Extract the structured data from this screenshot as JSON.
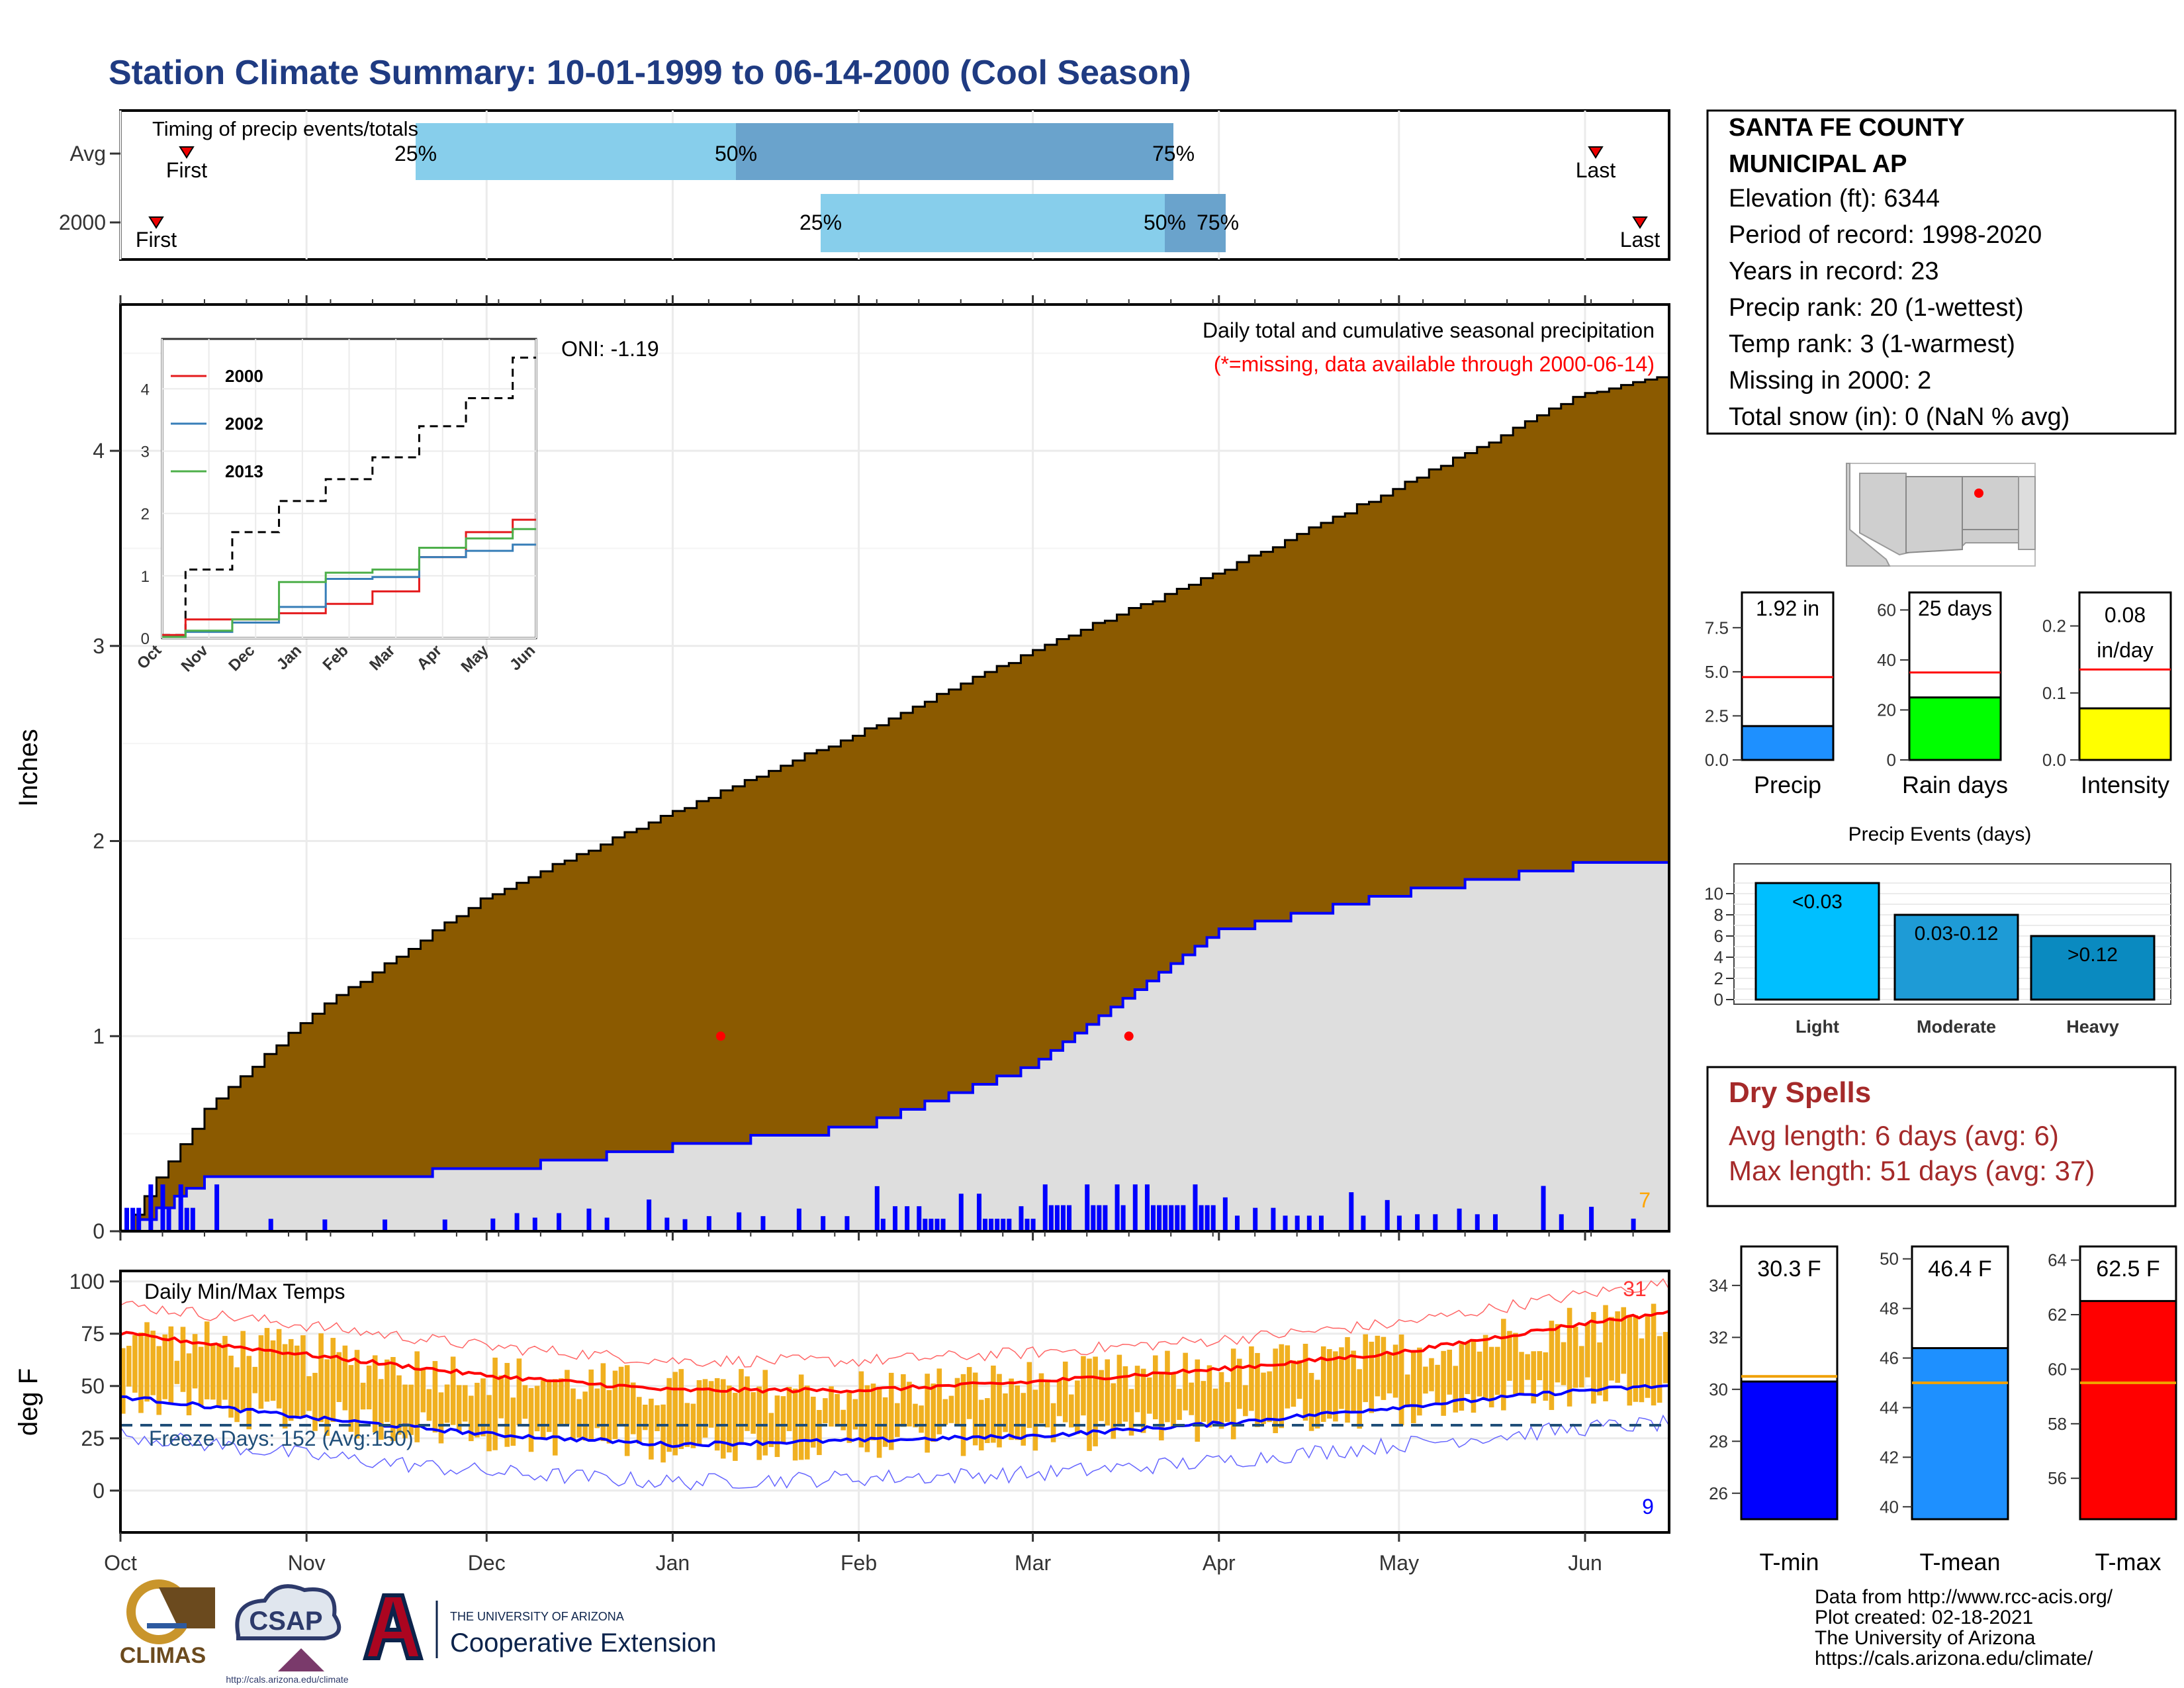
{
  "title": "Station Climate Summary: 10-01-1999 to 06-14-2000 (Cool Season)",
  "colors": {
    "title": "#1f3b82",
    "cum_avg_fill": "#8b5a00",
    "cum_year_fill": "#dedede",
    "year_line": "#0000ff",
    "timing_light": "#87ceeb",
    "timing_dark": "#6aa3cc",
    "temp_bar": "#f0b020",
    "tmax_line": "#ff0000",
    "tmin_line": "#0000ff",
    "dry_spells": "#a52a2a"
  },
  "station": {
    "name_line1": "SANTA FE COUNTY",
    "name_line2": "MUNICIPAL AP",
    "lines": [
      "Elevation (ft): 6344",
      "Period of record: 1998-2020",
      "Years in record: 23",
      "Precip rank: 20 (1-wettest)",
      "Temp rank: 3 (1-warmest)",
      "Missing in 2000: 2",
      "Total snow (in): 0 (NaN % avg)"
    ]
  },
  "timing": {
    "title": "Timing of precip events/totals",
    "rows": [
      {
        "label": "Avg",
        "first": "First",
        "last": "Last",
        "p25": "25%",
        "p50": "50%",
        "p75": "75%"
      },
      {
        "label": "2000",
        "first": "First",
        "last": "Last",
        "p25": "25%",
        "p50": "50%",
        "p75": "75%"
      }
    ]
  },
  "main": {
    "ylabel": "Inches",
    "oni": "ONI: -1.19",
    "note1": "Daily total and cumulative seasonal precipitation",
    "note2": "(*=missing, data available through 2000-06-14)",
    "count_label": "7"
  },
  "inset": {
    "legend": [
      "2000",
      "2002",
      "2013"
    ],
    "legend_colors": [
      "#e41a1c",
      "#377eb8",
      "#4daf4a"
    ]
  },
  "temps": {
    "title": "Daily Min/Max Temps",
    "ylabel": "deg F",
    "freeze": "Freeze Days: 152 (Avg:150)",
    "count_high": "31",
    "count_low": "9"
  },
  "months": [
    "Oct",
    "Nov",
    "Dec",
    "Jan",
    "Feb",
    "Mar",
    "Apr",
    "May",
    "Jun"
  ],
  "summary_bars": {
    "precip": {
      "label": "Precip",
      "value_text": "1.92 in",
      "value": 1.92,
      "avg": 4.7,
      "ymax": 9.5,
      "ticks": [
        "0.0",
        "2.5",
        "5.0",
        "7.5"
      ],
      "color": "#1e90ff"
    },
    "raindays": {
      "label": "Rain days",
      "value_text": "25 days",
      "value": 25,
      "avg": 35,
      "ymax": 67,
      "ticks": [
        "0",
        "20",
        "40",
        "60"
      ],
      "color": "#00ff00"
    },
    "intensity": {
      "label": "Intensity",
      "value_text1": "0.08",
      "value_text2": "in/day",
      "value": 0.077,
      "avg": 0.135,
      "ymax": 0.25,
      "ticks": [
        "0.0",
        "0.1",
        "0.2"
      ],
      "color": "#ffff00"
    }
  },
  "events": {
    "title": "Precip Events (days)",
    "categories": [
      "Light",
      "Moderate",
      "Heavy"
    ],
    "values": [
      11,
      8,
      6
    ],
    "labels": [
      "<0.03",
      "0.03-0.12",
      ">0.12"
    ],
    "colors": [
      "#00bfff",
      "#1e9bd6",
      "#0a8ac0"
    ],
    "ticks": [
      "0",
      "2",
      "4",
      "6",
      "8",
      "10"
    ]
  },
  "dry_spells": {
    "title": "Dry Spells",
    "avg": "Avg length: 6 days (avg: 6)",
    "max": "Max length: 51 days (avg: 37)"
  },
  "temp_bars": {
    "tmin": {
      "label": "T-min",
      "value_text": "30.3 F",
      "value": 30.3,
      "avg": 30.5,
      "ymin": 25,
      "ymax": 35.5,
      "ticks": [
        "26",
        "28",
        "30",
        "32",
        "34"
      ],
      "color": "#0000ff"
    },
    "tmean": {
      "label": "T-mean",
      "value_text": "46.4 F",
      "value": 46.4,
      "avg": 45.0,
      "ymin": 39.5,
      "ymax": 50.5,
      "ticks": [
        "40",
        "42",
        "44",
        "46",
        "48",
        "50"
      ],
      "color": "#1e90ff"
    },
    "tmax": {
      "label": "T-max",
      "value_text": "62.5 F",
      "value": 62.5,
      "avg": 59.5,
      "ymin": 54.5,
      "ymax": 64.5,
      "ticks": [
        "56",
        "58",
        "60",
        "62",
        "64"
      ],
      "color": "#ff0000"
    }
  },
  "footer": {
    "lines": [
      "Data from http://www.rcc-acis.org/",
      "Plot created: 02-18-2021",
      "The University of Arizona",
      "https://cals.arizona.edu/climate/"
    ],
    "logo_climas": "CLIMAS",
    "logo_csap": "CSAP",
    "logo_csap_url": "http://cals.arizona.edu/climate",
    "ua_small": "THE UNIVERSITY OF ARIZONA",
    "ua_big": "Cooperative Extension"
  },
  "chart_data": [
    {
      "type": "area",
      "ylabel": "Inches",
      "ylim": [
        0,
        4.75
      ],
      "x": [
        "1999-10-01",
        "1999-10-15",
        "1999-11-01",
        "1999-12-01",
        "2000-01-01",
        "2000-02-01",
        "2000-03-01",
        "2000-04-01",
        "2000-05-01",
        "2000-06-01",
        "2000-06-14"
      ],
      "series": [
        {
          "values": [
            0.0,
            0.62,
            1.1,
            1.72,
            2.15,
            2.56,
            2.98,
            3.38,
            3.82,
            4.3,
            4.38
          ]
        },
        {
          "name": "2000",
          "values": [
            0.0,
            0.28,
            0.3,
            0.33,
            0.45,
            0.55,
            0.86,
            1.55,
            1.75,
            1.9,
            1.92
          ]
        }
      ]
    },
    {
      "type": "line",
      "ylim": [
        0,
        4.8
      ],
      "x": [
        "Oct",
        "Nov",
        "Dec",
        "Jan",
        "Feb",
        "Mar",
        "Apr",
        "May",
        "Jun"
      ],
      "series": [
        {
          "values": [
            0.05,
            1.1,
            1.7,
            2.2,
            2.55,
            2.9,
            3.4,
            3.85,
            4.5
          ]
        },
        {
          "name": "2000",
          "values": [
            0.05,
            0.3,
            0.3,
            0.4,
            0.55,
            0.75,
            1.3,
            1.7,
            1.9
          ]
        },
        {
          "name": "2002",
          "values": [
            0.02,
            0.1,
            0.25,
            0.5,
            0.95,
            0.98,
            1.3,
            1.4,
            1.5
          ]
        },
        {
          "name": "2013",
          "values": [
            0.02,
            0.12,
            0.3,
            0.9,
            1.05,
            1.1,
            1.45,
            1.6,
            1.75
          ]
        }
      ]
    },
    {
      "type": "line",
      "ylabel": "deg F",
      "ylim": [
        -20,
        105
      ],
      "x": [
        "1999-10-01",
        "1999-11-01",
        "1999-12-01",
        "2000-01-01",
        "2000-02-01",
        "2000-03-01",
        "2000-04-01",
        "2000-05-01",
        "2000-06-01",
        "2000-06-14"
      ],
      "series": [
        {
          "values": [
            75,
            65,
            55,
            48,
            48,
            52,
            58,
            66,
            80,
            85
          ]
        },
        {
          "values": [
            45,
            35,
            27,
            22,
            24,
            26,
            32,
            40,
            48,
            50
          ]
        }
      ],
      "freeze_line": 32
    },
    {
      "type": "bar",
      "categories": [
        "Precip",
        "Rain days",
        "Intensity"
      ],
      "values": [
        1.92,
        25,
        0.08
      ]
    },
    {
      "type": "bar",
      "title": "Precip Events (days)",
      "categories": [
        "Light",
        "Moderate",
        "Heavy"
      ],
      "values": [
        11,
        8,
        6
      ]
    },
    {
      "type": "bar",
      "categories": [
        "T-min",
        "T-mean",
        "T-max"
      ],
      "values": [
        30.3,
        46.4,
        62.5
      ]
    }
  ]
}
